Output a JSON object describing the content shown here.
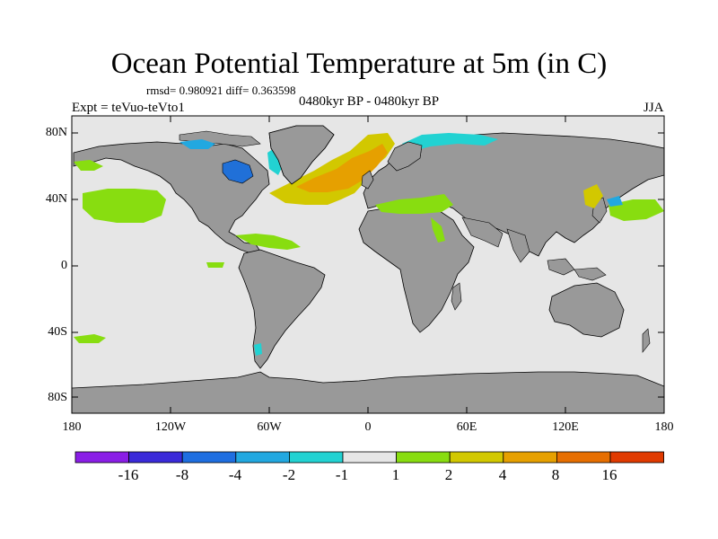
{
  "title": "Ocean Potential Temperature at 5m (in C)",
  "stats": "rmsd= 0.980921  diff= 0.363598",
  "expt": "Expt = teVuo-teVto1",
  "period": "0480kyr BP - 0480kyr BP",
  "season": "JJA",
  "lat_labels": [
    "80N",
    "40N",
    "0",
    "40S",
    "80S"
  ],
  "lon_labels": [
    "180",
    "120W",
    "60W",
    "0",
    "60E",
    "120E",
    "180"
  ],
  "colorbar": {
    "labels": [
      "-16",
      "-8",
      "-4",
      "-2",
      "-1",
      "1",
      "2",
      "4",
      "8",
      "16"
    ],
    "colors": [
      "#8a1ee6",
      "#3a2ad9",
      "#1e6ee0",
      "#22a8e0",
      "#22d2d2",
      "#e6e6e6",
      "#88dd10",
      "#d2c800",
      "#e6a000",
      "#e66e00",
      "#e03a00"
    ]
  },
  "map_colors": {
    "ocean_neutral": "#e6e6e6",
    "land": "#999999",
    "coast": "#000000"
  }
}
